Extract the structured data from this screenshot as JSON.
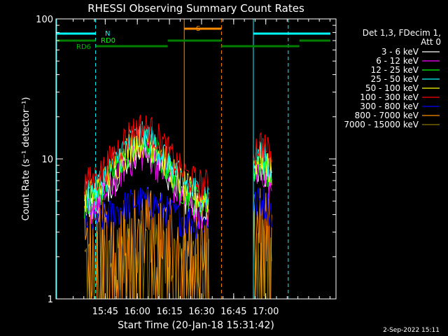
{
  "chart_data": {
    "type": "line",
    "title": "RHESSI Observing Summary Count Rates",
    "xlabel": "Start Time (20-Jan-18 15:31:42)",
    "ylabel": "Count Rate (s⁻¹ detector⁻¹)",
    "yscale": "log",
    "ylim": [
      1,
      100
    ],
    "xlim_minutes_since_start": [
      -9.7,
      121.1
    ],
    "x_tick_labels": [
      "15:45",
      "16:00",
      "16:15",
      "16:30",
      "16:45",
      "17:00"
    ],
    "x_tick_minutes_since_start": [
      13.3,
      28.3,
      43.3,
      58.3,
      73.3,
      88.3
    ],
    "y_tick_labels": [
      "1",
      "10",
      "100"
    ],
    "y_tick_values": [
      1,
      10,
      100
    ],
    "grid": false,
    "legend_placement": "right",
    "legend_header": [
      "Det 1,3, FDecim 1,",
      "Att 0"
    ],
    "date_stamp": "2-Sep-2022 15:11",
    "series": [
      {
        "name": "3 - 6 keV",
        "color": "#ffffff",
        "level": 4.6
      },
      {
        "name": "6 - 12 keV",
        "color": "#ff00ff",
        "level": 4.2
      },
      {
        "name": "12 - 25 keV",
        "color": "#00ff00",
        "level": 5.0
      },
      {
        "name": "25 - 50 keV",
        "color": "#00ffff",
        "level": 5.6
      },
      {
        "name": "50 - 100 keV",
        "color": "#ffff00",
        "level": 5.3
      },
      {
        "name": "100 - 300 keV",
        "color": "#ff0000",
        "level": 6.5
      },
      {
        "name": "300 - 800 keV",
        "color": "#0000ff",
        "level": 3.6
      },
      {
        "name": "800 - 7000 keV",
        "color": "#ff8c00",
        "level": 1.8
      },
      {
        "name": "7000 - 15000 keV",
        "color": "#8b7500",
        "level": 1.2
      }
    ],
    "segments": [
      {
        "start": 3.6,
        "end": 61.8,
        "peak_at": 30.5
      },
      {
        "start": 82.5,
        "end": 91.2,
        "peak_at": 86.0
      }
    ],
    "annotations": {
      "flag_labels": [
        "N",
        "RD0",
        "RD6",
        "S"
      ],
      "vertical_lines_cyan_solid": [
        -9.4,
        82.5
      ],
      "vertical_lines_cyan_dashed": [
        8.8,
        98.8
      ],
      "vertical_lines_orange_solid": [
        50.2
      ],
      "vertical_lines_orange_dashed": [
        67.6
      ]
    }
  }
}
